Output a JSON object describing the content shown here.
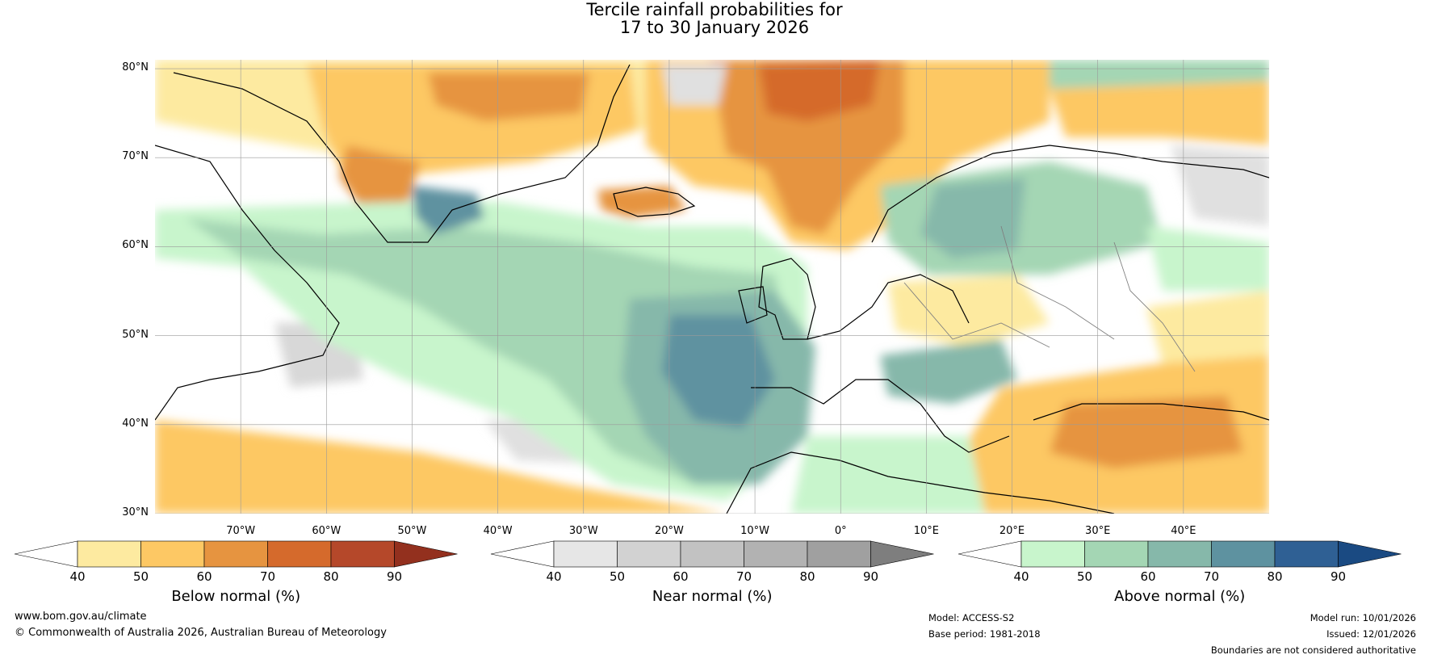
{
  "header": {
    "title_line1": "Tercile rainfall probabilities for",
    "title_line2": "17 to 30 January 2026"
  },
  "map": {
    "lat_labels": [
      "80°N",
      "70°N",
      "60°N",
      "50°N",
      "40°N",
      "30°N"
    ],
    "lon_labels": [
      "70°W",
      "60°W",
      "50°W",
      "40°W",
      "30°W",
      "20°W",
      "10°W",
      "0°",
      "10°E",
      "20°E",
      "30°E",
      "40°E"
    ]
  },
  "colorbars": [
    {
      "title": "Below normal (%)",
      "ticks": [
        "40",
        "50",
        "60",
        "70",
        "80",
        "90"
      ],
      "colors": [
        "#fdeaa0",
        "#fdc864",
        "#e69440",
        "#d56a2c",
        "#b5482a",
        "#93301e"
      ]
    },
    {
      "title": "Near normal (%)",
      "ticks": [
        "40",
        "50",
        "60",
        "70",
        "80",
        "90"
      ],
      "colors": [
        "#e6e6e6",
        "#d2d2d2",
        "#c2c2c2",
        "#b2b2b2",
        "#a0a0a0",
        "#7e7e7e"
      ]
    },
    {
      "title": "Above normal (%)",
      "ticks": [
        "40",
        "50",
        "60",
        "70",
        "80",
        "90"
      ],
      "colors": [
        "#c8f5cc",
        "#a4d6b4",
        "#86b8aa",
        "#5e92a0",
        "#2f6094",
        "#1a4a82"
      ]
    }
  ],
  "footer": {
    "website": "www.bom.gov.au/climate",
    "copyright": "© Commonwealth of Australia 2026, Australian Bureau of Meteorology",
    "model": "Model: ACCESS-S2",
    "base_period": "Base period: 1981-2018",
    "model_run": "Model run: 10/01/2026",
    "issued": "Issued: 12/01/2026",
    "disclaimer": "Boundaries are not considered authoritative"
  }
}
